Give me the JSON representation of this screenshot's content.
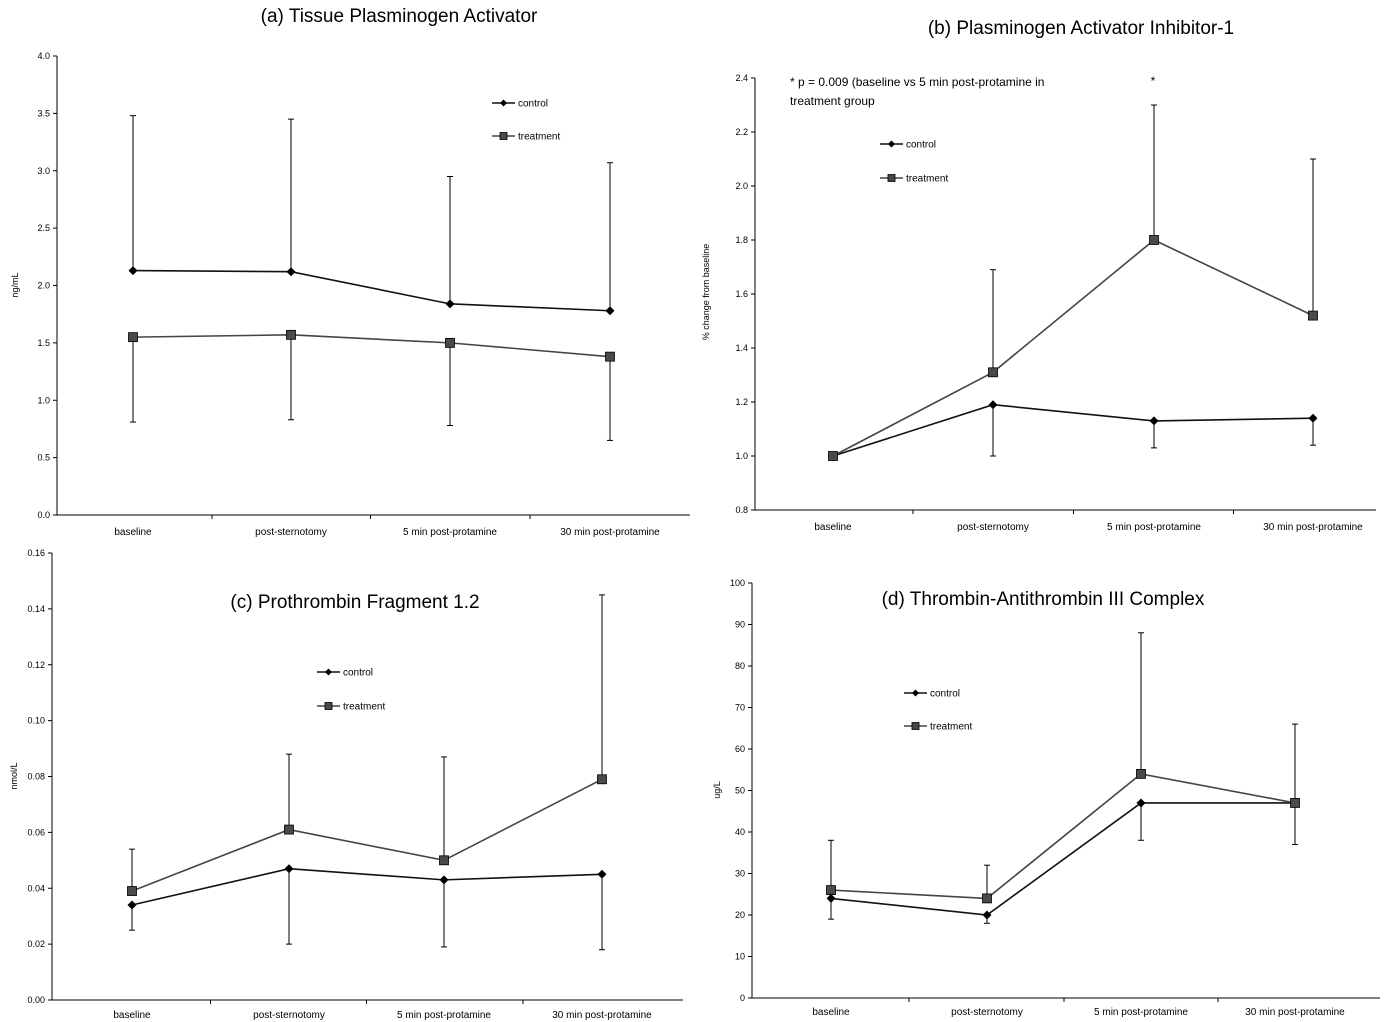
{
  "chart_data": [
    {
      "type": "line",
      "title": "(a) Tissue Plasminogen Activator",
      "ylabel": "ng/mL",
      "ylim": [
        0,
        4
      ],
      "yticks": [
        "0.0",
        "0.5",
        "1.0",
        "1.5",
        "2.0",
        "2.5",
        "3.0",
        "3.5",
        "4.0"
      ],
      "categories": [
        "baseline",
        "post-sternotomy",
        "5 min post-protamine",
        "30 min post-protamine"
      ],
      "legend": [
        "control",
        "treatment"
      ],
      "legend_position": "top-right",
      "series": [
        {
          "name": "control",
          "values": [
            2.13,
            2.12,
            1.84,
            1.78
          ],
          "error_upper": [
            3.48,
            3.45,
            2.95,
            3.07
          ]
        },
        {
          "name": "treatment",
          "values": [
            1.55,
            1.57,
            1.5,
            1.38
          ],
          "error_lower": [
            0.81,
            0.83,
            0.78,
            0.65
          ]
        }
      ]
    },
    {
      "type": "line",
      "title": "(b) Plasminogen Activator Inhibitor-1",
      "ylabel": "% change from baseline",
      "ylim": [
        0.8,
        2.4
      ],
      "yticks": [
        "0.8",
        "1.0",
        "1.2",
        "1.4",
        "1.6",
        "1.8",
        "2.0",
        "2.2",
        "2.4"
      ],
      "categories": [
        "baseline",
        "post-sternotomy",
        "5 min post-protamine",
        "30 min post-protamine"
      ],
      "legend": [
        "control",
        "treatment"
      ],
      "legend_position": "top-left",
      "annotation_lines": [
        "* p = 0.009 (baseline vs 5 min post-protamine in",
        "treatment group"
      ],
      "marker": "*",
      "series": [
        {
          "name": "control",
          "values": [
            1.0,
            1.19,
            1.13,
            1.14
          ],
          "error_lower": [
            null,
            1.0,
            1.03,
            1.04
          ]
        },
        {
          "name": "treatment",
          "values": [
            1.0,
            1.31,
            1.8,
            1.52
          ],
          "error_upper": [
            null,
            1.69,
            2.3,
            2.1
          ]
        }
      ]
    },
    {
      "type": "line",
      "title": "(c) Prothrombin Fragment 1.2",
      "ylabel": "nmol/L",
      "ylim": [
        0,
        0.16
      ],
      "yticks": [
        "0.00",
        "0.02",
        "0.04",
        "0.06",
        "0.08",
        "0.10",
        "0.12",
        "0.14",
        "0.16"
      ],
      "categories": [
        "baseline",
        "post-sternotomy",
        "5 min post-protamine",
        "30 min post-protamine"
      ],
      "legend": [
        "control",
        "treatment"
      ],
      "legend_position": "top-center",
      "series": [
        {
          "name": "control",
          "values": [
            0.034,
            0.047,
            0.043,
            0.045
          ],
          "error_lower": [
            0.025,
            0.02,
            0.019,
            0.018
          ]
        },
        {
          "name": "treatment",
          "values": [
            0.039,
            0.061,
            0.05,
            0.079
          ],
          "error_upper": [
            0.054,
            0.088,
            0.087,
            0.145
          ]
        }
      ]
    },
    {
      "type": "line",
      "title": "(d) Thrombin-Antithrombin III  Complex",
      "ylabel": "ug/L",
      "ylim": [
        0,
        100
      ],
      "yticks": [
        "0",
        "10",
        "20",
        "30",
        "40",
        "50",
        "60",
        "70",
        "80",
        "90",
        "100"
      ],
      "categories": [
        "baseline",
        "post-sternotomy",
        "5 min post-protamine",
        "30 min post-protamine"
      ],
      "legend": [
        "control",
        "treatment"
      ],
      "legend_position": "top-left",
      "series": [
        {
          "name": "control",
          "values": [
            24,
            20,
            47,
            47
          ],
          "error_lower": [
            19,
            18,
            38,
            37
          ]
        },
        {
          "name": "treatment",
          "values": [
            26,
            24,
            54,
            47
          ],
          "error_upper": [
            38,
            32,
            88,
            66
          ]
        }
      ]
    }
  ]
}
